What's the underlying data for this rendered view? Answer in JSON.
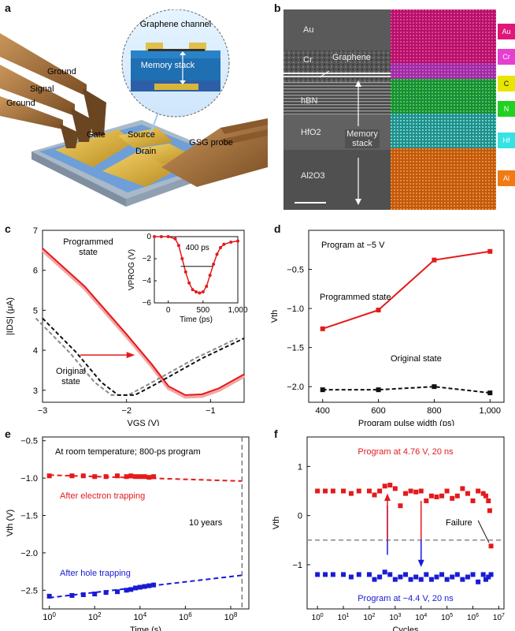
{
  "labels": {
    "a": "a",
    "b": "b",
    "c": "c",
    "d": "d",
    "e": "e",
    "f": "f"
  },
  "panel_a": {
    "graphene_channel": "Graphene channel",
    "memory_stack": "Memory stack",
    "ground_top": "Ground",
    "signal": "Signal",
    "ground_bottom": "Ground",
    "gate": "Gate",
    "source": "Source",
    "drain": "Drain",
    "gsg_probe": "GSG probe",
    "colors": {
      "gold": "#d9b63a",
      "blue": "#5b8fd6",
      "probe": "#a0703a"
    }
  },
  "panel_b": {
    "layers": [
      "Au",
      "Cr",
      "hBN",
      "HfO2",
      "Al2O3"
    ],
    "graphene": "Graphene",
    "memory_stack": "Memory stack",
    "legend": [
      {
        "label": "Au",
        "color": "#e0177a"
      },
      {
        "label": "Cr",
        "color": "#e63fd1"
      },
      {
        "label": "C",
        "color": "#e8e600"
      },
      {
        "label": "N",
        "color": "#22d022"
      },
      {
        "label": "Hf",
        "color": "#35e3e3"
      },
      {
        "label": "Al",
        "color": "#f07a14"
      }
    ]
  },
  "chart_data": [
    {
      "panel": "c",
      "type": "line",
      "xlabel": "VGS (V)",
      "ylabel": "|IDS| (μA)",
      "xlim": [
        -3,
        -0.6
      ],
      "ylim": [
        2.7,
        7
      ],
      "xticks": [
        -3,
        -2,
        -1
      ],
      "yticks": [
        3,
        4,
        5,
        6,
        7
      ],
      "annotations": [
        "Programmed state",
        "Original state"
      ],
      "series": [
        {
          "name": "Programmed state",
          "color": "#e41a1c",
          "x": [
            -3,
            -2.5,
            -2,
            -1.7,
            -1.5,
            -1.3,
            -1.1,
            -0.9,
            -0.6
          ],
          "y": [
            6.55,
            5.6,
            4.4,
            3.65,
            3.1,
            2.88,
            2.9,
            3.05,
            3.4
          ]
        },
        {
          "name": "Original state",
          "color": "#111111",
          "x": [
            -3,
            -2.6,
            -2.3,
            -2.1,
            -1.9,
            -1.7,
            -1.4,
            -1.1,
            -0.6
          ],
          "y": [
            4.8,
            3.95,
            3.2,
            2.88,
            2.88,
            3.1,
            3.45,
            3.8,
            4.3
          ]
        }
      ],
      "inset": {
        "xlabel": "Time (ps)",
        "ylabel": "VPROG (V)",
        "xlim": [
          -200,
          1000
        ],
        "ylim": [
          -6,
          0
        ],
        "xticks": [
          0,
          500,
          "1,000"
        ],
        "yticks": [
          0,
          -2,
          -4,
          -6
        ],
        "annotation": "400 ps",
        "x": [
          -200,
          -100,
          0,
          100,
          150,
          200,
          250,
          300,
          350,
          400,
          450,
          500,
          550,
          600,
          650,
          700,
          750,
          800,
          900,
          1000
        ],
        "y": [
          0,
          0,
          0,
          -0.2,
          -0.8,
          -2.0,
          -3.2,
          -4.2,
          -4.8,
          -5.0,
          -5.1,
          -5.0,
          -4.5,
          -3.5,
          -2.5,
          -1.6,
          -1.0,
          -0.7,
          -0.5,
          -0.4
        ]
      }
    },
    {
      "panel": "d",
      "type": "line",
      "xlabel": "Program pulse width (ps)",
      "ylabel": "Vth",
      "xlim": [
        350,
        1050
      ],
      "ylim": [
        -2.2,
        0
      ],
      "xticks": [
        400,
        600,
        800,
        "1,000"
      ],
      "yticks": [
        -0.5,
        -1.0,
        -1.5,
        -2.0
      ],
      "annotations": [
        "Program at −5 V",
        "Programmed state",
        "Original state"
      ],
      "series": [
        {
          "name": "Programmed state",
          "color": "#e41a1c",
          "x": [
            400,
            600,
            800,
            1000
          ],
          "y": [
            -1.26,
            -1.02,
            -0.38,
            -0.27
          ]
        },
        {
          "name": "Original state",
          "color": "#111111",
          "x": [
            400,
            600,
            800,
            1000
          ],
          "y": [
            -2.04,
            -2.04,
            -2.0,
            -2.08
          ]
        }
      ]
    },
    {
      "panel": "e",
      "type": "scatter",
      "xlabel": "Time (s)",
      "ylabel": "Vth (V)",
      "xlim_log10": [
        -0.3,
        8.8
      ],
      "ylim": [
        -2.75,
        -0.45
      ],
      "xticks": [
        "10^0",
        "10^2",
        "10^4",
        "10^6",
        "10^8"
      ],
      "yticks": [
        -0.5,
        -1.0,
        -1.5,
        -2.0,
        -2.5
      ],
      "annotations": [
        "At room temperature; 800-ps program",
        "After electron trapping",
        "10 years",
        "After hole trapping"
      ],
      "series": [
        {
          "name": "After electron trapping",
          "color": "#e41a1c",
          "log10x": [
            0,
            1,
            1.5,
            2,
            2.5,
            3,
            3.4,
            3.6,
            3.8,
            4.0,
            4.2,
            4.4,
            4.6
          ],
          "y": [
            -0.97,
            -0.97,
            -0.97,
            -0.98,
            -0.98,
            -0.97,
            -0.98,
            -0.97,
            -0.98,
            -0.98,
            -0.98,
            -0.99,
            -0.98
          ],
          "fit": [
            [
              0,
              -0.96
            ],
            [
              8.5,
              -1.04
            ]
          ]
        },
        {
          "name": "After hole trapping",
          "color": "#1a1ad6",
          "log10x": [
            0,
            1,
            1.5,
            2,
            2.5,
            3,
            3.4,
            3.6,
            3.8,
            4.0,
            4.2,
            4.4,
            4.6
          ],
          "y": [
            -2.58,
            -2.57,
            -2.56,
            -2.55,
            -2.53,
            -2.52,
            -2.5,
            -2.49,
            -2.47,
            -2.46,
            -2.45,
            -2.44,
            -2.43
          ],
          "fit": [
            [
              0,
              -2.6
            ],
            [
              8.5,
              -2.3
            ]
          ]
        }
      ],
      "vline_log10x": 8.5
    },
    {
      "panel": "f",
      "type": "scatter",
      "xlabel": "Cycles",
      "ylabel": "Vth",
      "xlim_log10": [
        -0.4,
        7.2
      ],
      "ylim": [
        -1.9,
        1.6
      ],
      "xticks": [
        "10^0",
        "10^1",
        "10^2",
        "10^3",
        "10^4",
        "10^5",
        "10^6",
        "10^7"
      ],
      "yticks": [
        1,
        0,
        -1
      ],
      "annotations": [
        "Program at 4.76 V, 20 ns",
        "Failure",
        "Program at −4.4 V, 20 ns"
      ],
      "hline_y": -0.5,
      "series": [
        {
          "name": "Program at 4.76 V, 20 ns",
          "color": "#e41a1c",
          "log10x": [
            0,
            0.3,
            0.6,
            1,
            1.3,
            1.6,
            2,
            2.2,
            2.4,
            2.6,
            2.8,
            3,
            3.2,
            3.4,
            3.6,
            3.8,
            4,
            4.2,
            4.4,
            4.6,
            4.8,
            5,
            5.2,
            5.4,
            5.6,
            5.8,
            6,
            6.2,
            6.4,
            6.5,
            6.6,
            6.65,
            6.7
          ],
          "y": [
            0.5,
            0.5,
            0.5,
            0.5,
            0.45,
            0.5,
            0.5,
            0.42,
            0.5,
            0.6,
            0.62,
            0.55,
            0.2,
            0.45,
            0.5,
            0.48,
            0.5,
            0.3,
            0.4,
            0.38,
            0.4,
            0.5,
            0.35,
            0.4,
            0.55,
            0.45,
            0.3,
            0.5,
            0.45,
            0.4,
            0.3,
            0.1,
            -0.62
          ]
        },
        {
          "name": "Program at −4.4 V, 20 ns",
          "color": "#1a1ad6",
          "log10x": [
            0,
            0.3,
            0.6,
            1,
            1.3,
            1.6,
            2,
            2.2,
            2.4,
            2.6,
            2.8,
            3,
            3.2,
            3.4,
            3.6,
            3.8,
            4,
            4.2,
            4.4,
            4.6,
            4.8,
            5,
            5.2,
            5.4,
            5.6,
            5.8,
            6,
            6.2,
            6.4,
            6.5,
            6.6,
            6.7
          ],
          "y": [
            -1.2,
            -1.2,
            -1.2,
            -1.2,
            -1.25,
            -1.2,
            -1.2,
            -1.3,
            -1.25,
            -1.15,
            -1.2,
            -1.3,
            -1.25,
            -1.2,
            -1.3,
            -1.25,
            -1.3,
            -1.2,
            -1.3,
            -1.25,
            -1.2,
            -1.3,
            -1.25,
            -1.2,
            -1.3,
            -1.25,
            -1.2,
            -1.35,
            -1.2,
            -1.3,
            -1.25,
            -1.2
          ]
        }
      ]
    }
  ]
}
